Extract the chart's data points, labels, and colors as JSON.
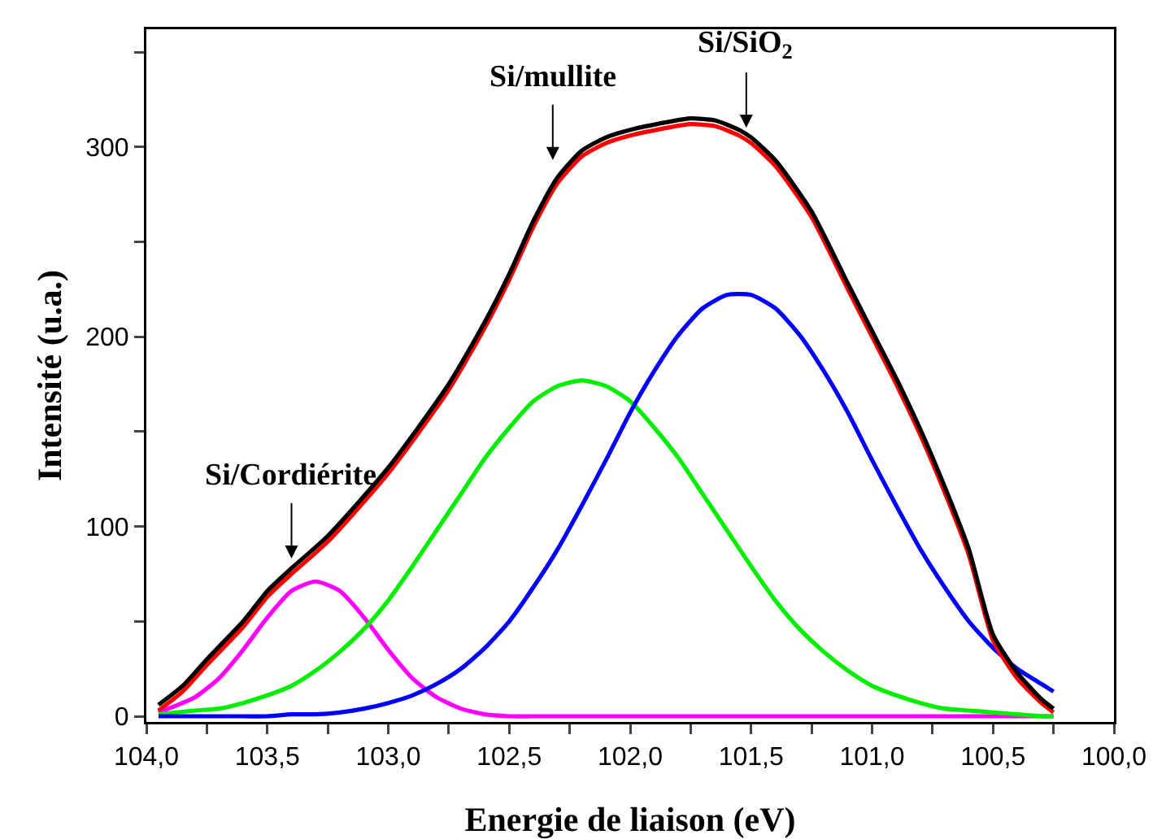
{
  "chart_data": {
    "type": "line",
    "xlabel": "Energie de liaison (eV)",
    "ylabel": "Intensité (u.a.)",
    "xlim": [
      104,
      100
    ],
    "ylim": [
      -3,
      362
    ],
    "xticks": [
      {
        "value": 104,
        "label": "104,0"
      },
      {
        "value": 103.75,
        "label": null
      },
      {
        "value": 103.5,
        "label": "103,5"
      },
      {
        "value": 103.25,
        "label": null
      },
      {
        "value": 103,
        "label": "103,0"
      },
      {
        "value": 102.75,
        "label": null
      },
      {
        "value": 102.5,
        "label": "102,5"
      },
      {
        "value": 102.25,
        "label": null
      },
      {
        "value": 102,
        "label": "102,0"
      },
      {
        "value": 101.75,
        "label": null
      },
      {
        "value": 101.5,
        "label": "101,5"
      },
      {
        "value": 101.25,
        "label": null
      },
      {
        "value": 101,
        "label": "101,0"
      },
      {
        "value": 100.75,
        "label": null
      },
      {
        "value": 100.5,
        "label": "100,5"
      },
      {
        "value": 100.25,
        "label": null
      },
      {
        "value": 100,
        "label": "100,0"
      }
    ],
    "yticks": [
      0,
      {
        "value": 50,
        "label": null
      },
      100,
      {
        "value": 150,
        "label": null
      },
      200,
      {
        "value": 250,
        "label": null
      },
      300,
      {
        "value": 350,
        "label": null
      }
    ],
    "grid": false,
    "marker": "none",
    "line_style": "solid",
    "annotations": [
      {
        "text": "Si/Cordiérite",
        "x": 103.4,
        "y": 78
      },
      {
        "text": "Si/mullite",
        "x": 102.32,
        "y": 288
      },
      {
        "text": "Si/SiO$_{2}$",
        "x": 101.52,
        "y": 305
      }
    ],
    "series": [
      {
        "color": "#ff00ff",
        "x": [
          103.95,
          103.8,
          103.7,
          103.6,
          103.5,
          103.4,
          103.3,
          103.2,
          103.1,
          103.0,
          102.9,
          102.8,
          102.7,
          102.6,
          102.5,
          102.4,
          102.3,
          102.2,
          102.1,
          102.0,
          101.9,
          101.8,
          101.7,
          101.6,
          101.5,
          101.4,
          101.3,
          101.2,
          101.1,
          101.0,
          100.9,
          100.8,
          100.7,
          100.6,
          100.5,
          100.4,
          100.3,
          100.25
        ],
        "values": [
          2,
          10,
          20,
          35,
          52,
          66,
          71,
          66,
          52,
          35,
          20,
          10,
          4,
          1,
          0,
          0,
          0,
          0,
          0,
          0,
          0,
          0,
          0,
          0,
          0,
          0,
          0,
          0,
          0,
          0,
          0,
          0,
          0,
          0,
          0,
          0,
          0,
          0
        ]
      },
      {
        "color": "#00ee00",
        "x": [
          103.95,
          103.8,
          103.7,
          103.6,
          103.5,
          103.4,
          103.3,
          103.2,
          103.1,
          103.0,
          102.9,
          102.8,
          102.7,
          102.6,
          102.5,
          102.4,
          102.3,
          102.2,
          102.1,
          102.0,
          101.9,
          101.8,
          101.7,
          101.6,
          101.5,
          101.4,
          101.3,
          101.2,
          101.1,
          101.0,
          100.9,
          100.8,
          100.7,
          100.6,
          100.5,
          100.4,
          100.3,
          100.25
        ],
        "values": [
          1,
          3,
          4,
          7,
          11,
          16,
          24,
          34,
          46,
          61,
          79,
          98,
          117,
          136,
          152,
          166,
          174,
          177,
          174,
          166,
          152,
          136,
          117,
          98,
          79,
          61,
          46,
          34,
          24,
          16,
          11,
          7,
          4,
          3,
          2,
          1,
          0,
          0
        ]
      },
      {
        "color": "#0000ff",
        "x": [
          103.95,
          103.8,
          103.7,
          103.6,
          103.5,
          103.4,
          103.3,
          103.2,
          103.1,
          103.0,
          102.9,
          102.8,
          102.7,
          102.6,
          102.5,
          102.4,
          102.3,
          102.2,
          102.1,
          102.0,
          101.9,
          101.8,
          101.7,
          101.6,
          101.5,
          101.4,
          101.3,
          101.2,
          101.1,
          101.0,
          100.9,
          100.8,
          100.7,
          100.6,
          100.5,
          100.4,
          100.3,
          100.25
        ],
        "values": [
          0,
          0,
          0,
          0,
          0,
          1,
          1,
          2,
          4,
          7,
          11,
          17,
          25,
          36,
          50,
          68,
          88,
          111,
          135,
          160,
          182,
          201,
          215,
          222,
          222,
          215,
          201,
          182,
          160,
          135,
          111,
          88,
          68,
          50,
          36,
          25,
          17,
          13
        ]
      },
      {
        "color": "#ff0000",
        "x": [
          103.95,
          103.85,
          103.75,
          103.6,
          103.5,
          103.4,
          103.25,
          103.0,
          102.75,
          102.6,
          102.5,
          102.4,
          102.3,
          102.2,
          102.1,
          102.0,
          101.85,
          101.75,
          101.65,
          101.55,
          101.5,
          101.4,
          101.25,
          101.1,
          101.0,
          100.9,
          100.8,
          100.7,
          100.6,
          100.5,
          100.4,
          100.3,
          100.25
        ],
        "values": [
          3,
          13,
          27,
          47,
          63,
          75,
          92,
          128,
          172,
          205,
          230,
          258,
          281,
          295,
          302,
          306,
          310,
          312,
          311,
          306,
          302,
          290,
          263,
          225,
          200,
          175,
          148,
          118,
          85,
          40,
          20,
          7,
          2
        ]
      },
      {
        "color": "#000000",
        "x": [
          103.95,
          103.85,
          103.75,
          103.6,
          103.5,
          103.4,
          103.25,
          103.0,
          102.75,
          102.6,
          102.5,
          102.4,
          102.3,
          102.2,
          102.1,
          102.0,
          101.85,
          101.75,
          101.65,
          101.55,
          101.5,
          101.4,
          101.25,
          101.1,
          101.0,
          100.9,
          100.8,
          100.7,
          100.6,
          100.5,
          100.4,
          100.3,
          100.25
        ],
        "values": [
          6,
          16,
          30,
          50,
          66,
          78,
          95,
          131,
          175,
          208,
          233,
          261,
          284,
          298,
          305,
          309,
          313,
          315,
          314,
          309,
          305,
          293,
          266,
          228,
          203,
          178,
          151,
          121,
          88,
          43,
          23,
          9,
          4
        ]
      }
    ]
  }
}
